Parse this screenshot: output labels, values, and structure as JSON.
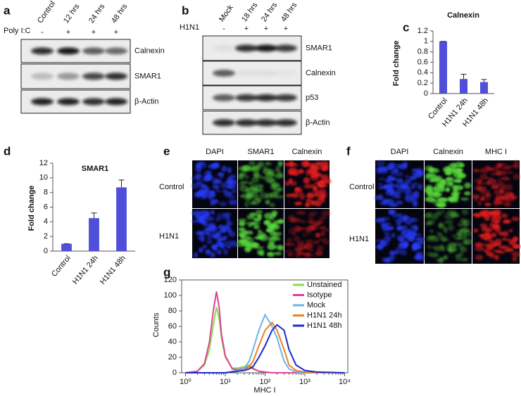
{
  "panels": {
    "a": {
      "label": "a",
      "lanes": [
        "Control",
        "12 hrs",
        "24 hrs",
        "48 hrs"
      ],
      "treatment": "Poly I:C",
      "signs": [
        "-",
        "+",
        "+",
        "+"
      ],
      "bands": [
        "Calnexin",
        "SMAR1",
        "β-Actin"
      ]
    },
    "b": {
      "label": "b",
      "lanes": [
        "Mock",
        "18 hrs",
        "24 hrs",
        "48 hrs"
      ],
      "treatment": "H1N1",
      "signs": [
        "-",
        "+",
        "+",
        "+"
      ],
      "bands": [
        "SMAR1",
        "Calnexin",
        "p53",
        "β-Actin"
      ]
    },
    "e": {
      "label": "e",
      "channels": [
        "DAPI",
        "SMAR1",
        "Calnexin"
      ],
      "rows": [
        "Control",
        "H1N1"
      ]
    },
    "f": {
      "label": "f",
      "channels": [
        "DAPI",
        "Calnexin",
        "MHC I"
      ],
      "rows": [
        "Control",
        "H1N1"
      ]
    }
  },
  "chart_data": [
    {
      "type": "bar",
      "panel": "c",
      "title": "Calnexin",
      "y_label": "Fold change",
      "categories": [
        "Control",
        "H1N1 24h",
        "H1N1 48h"
      ],
      "values": [
        1,
        0.28,
        0.22
      ],
      "errors": [
        0,
        0.09,
        0.05
      ],
      "color": "#4f4fd9",
      "ylim": [
        0,
        1.2
      ],
      "yticks": [
        0,
        0.2,
        0.4,
        0.6,
        0.8,
        1,
        1.2
      ]
    },
    {
      "type": "bar",
      "panel": "d",
      "title": "SMAR1",
      "y_label": "Fold change",
      "categories": [
        "Control",
        "H1N1 24h",
        "H1N1 48h"
      ],
      "values": [
        1,
        4.5,
        8.7
      ],
      "errors": [
        0,
        0.7,
        1.0
      ],
      "color": "#4f4fd9",
      "ylim": [
        0,
        12
      ],
      "yticks": [
        0,
        2,
        4,
        6,
        8,
        10,
        12
      ]
    },
    {
      "type": "line",
      "panel": "g",
      "x_label": "MHC I",
      "y_label": "Counts",
      "log_x": true,
      "legend": "upper right",
      "x": [
        1,
        2,
        3,
        4,
        5,
        6,
        7,
        8,
        10,
        15,
        20,
        30,
        40,
        50,
        70,
        100,
        150,
        200,
        300,
        400,
        600,
        1000,
        2000,
        10000
      ],
      "series": [
        {
          "name": "Unstained",
          "color": "#86e04a",
          "values": [
            0,
            2,
            10,
            30,
            62,
            85,
            70,
            45,
            20,
            6,
            6,
            8,
            10,
            6,
            2,
            1,
            0,
            0,
            0,
            0,
            0,
            0,
            0,
            0
          ]
        },
        {
          "name": "Isotype",
          "color": "#e0409a",
          "values": [
            0,
            2,
            12,
            40,
            80,
            105,
            85,
            50,
            22,
            5,
            4,
            6,
            8,
            5,
            2,
            1,
            0,
            0,
            0,
            0,
            0,
            0,
            0,
            0
          ]
        },
        {
          "name": "Mock",
          "color": "#6ab4e8",
          "values": [
            0,
            0,
            0,
            0,
            0,
            0,
            0,
            0,
            0,
            2,
            3,
            6,
            15,
            30,
            55,
            75,
            60,
            45,
            15,
            5,
            1,
            0,
            0,
            0
          ]
        },
        {
          "name": "H1N1 24h",
          "color": "#f08020",
          "values": [
            0,
            0,
            0,
            0,
            0,
            0,
            0,
            0,
            0,
            1,
            2,
            4,
            8,
            15,
            35,
            55,
            65,
            55,
            30,
            10,
            3,
            1,
            0,
            0
          ]
        },
        {
          "name": "H1N1 48h",
          "color": "#1a2ad0",
          "values": [
            0,
            0,
            0,
            0,
            0,
            0,
            0,
            0,
            0,
            1,
            2,
            3,
            5,
            8,
            20,
            35,
            55,
            62,
            55,
            30,
            10,
            3,
            1,
            0
          ]
        }
      ],
      "xlim": [
        0.8,
        12000
      ],
      "xticks": [
        {
          "value": 1,
          "label": "10⁰"
        },
        {
          "value": 10,
          "label": "10¹"
        },
        {
          "value": 100,
          "label": "10²"
        },
        {
          "value": 1000,
          "label": "10³"
        },
        {
          "value": 10000,
          "label": "10⁴"
        }
      ],
      "ylim": [
        0,
        120
      ],
      "yticks": [
        0,
        20,
        40,
        60,
        80,
        100,
        120
      ]
    }
  ]
}
